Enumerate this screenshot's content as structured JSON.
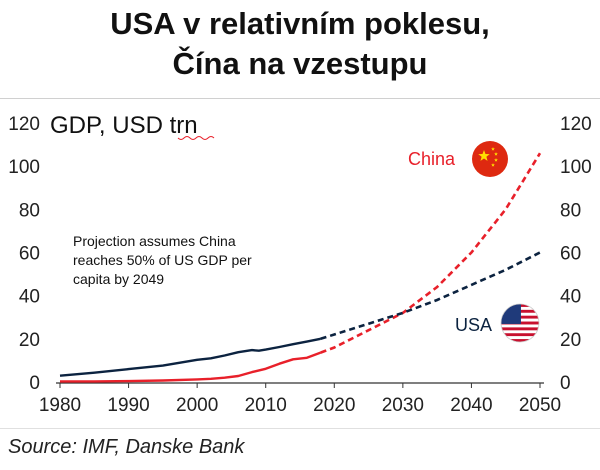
{
  "header": {
    "title_line1": "USA v relativním poklesu,",
    "title_line2": "Čína na vzestupu"
  },
  "source": "Source: IMF, Danske Bank",
  "chart_data": {
    "type": "line",
    "ylabel": "GDP, USD trn",
    "xlim": [
      1980,
      2050
    ],
    "ylim": [
      0,
      120
    ],
    "x_ticks": [
      "1980",
      "1990",
      "2000",
      "2010",
      "2020",
      "2030",
      "2040",
      "2050"
    ],
    "y_ticks_left": [
      "0",
      "20",
      "40",
      "60",
      "80",
      "100",
      "120"
    ],
    "y_ticks_right": [
      "0",
      "20",
      "40",
      "60",
      "80",
      "100",
      "120"
    ],
    "annotation": [
      "Projection assumes China",
      "reaches 50% of US GDP per",
      "capita by 2049"
    ],
    "grid": false,
    "series": [
      {
        "name": "China",
        "color": "#e8202a",
        "flag_icon": "china-flag-icon",
        "actual": {
          "x": [
            1980,
            1985,
            1990,
            1995,
            2000,
            2002,
            2004,
            2006,
            2008,
            2010,
            2012,
            2014,
            2016,
            2018
          ],
          "y": [
            0.3,
            0.3,
            0.4,
            0.7,
            1.2,
            1.5,
            2.0,
            2.8,
            4.6,
            6.1,
            8.5,
            10.5,
            11.2,
            13.6
          ]
        },
        "projection": {
          "x": [
            2018,
            2020,
            2025,
            2030,
            2035,
            2040,
            2045,
            2050
          ],
          "y": [
            13.6,
            16,
            24,
            32,
            44,
            60,
            80,
            106
          ]
        }
      },
      {
        "name": "USA",
        "color": "#0c2340",
        "flag_icon": "usa-flag-icon",
        "actual": {
          "x": [
            1980,
            1985,
            1990,
            1995,
            2000,
            2002,
            2004,
            2006,
            2008,
            2009,
            2010,
            2012,
            2014,
            2016,
            2018
          ],
          "y": [
            2.9,
            4.3,
            6.0,
            7.6,
            10.3,
            11.0,
            12.3,
            13.8,
            14.8,
            14.5,
            15.0,
            16.2,
            17.5,
            18.7,
            20.0
          ]
        },
        "projection": {
          "x": [
            2018,
            2020,
            2025,
            2030,
            2035,
            2040,
            2045,
            2050
          ],
          "y": [
            20.0,
            22,
            27,
            32,
            38,
            45,
            52,
            60
          ]
        }
      }
    ]
  }
}
